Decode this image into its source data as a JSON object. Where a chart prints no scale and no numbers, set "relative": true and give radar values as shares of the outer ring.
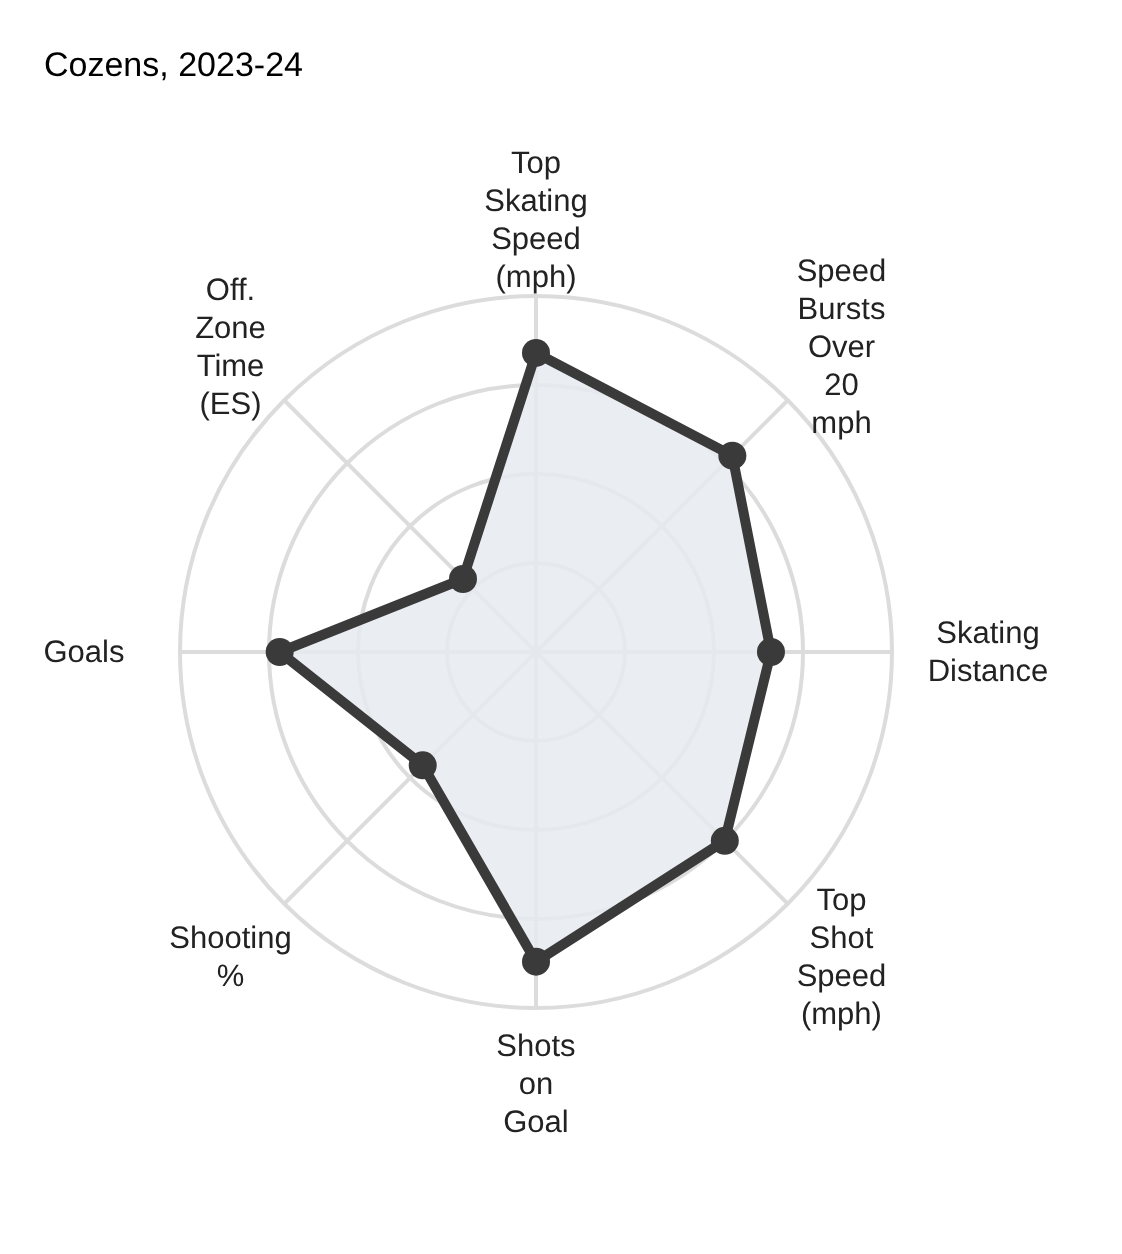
{
  "chart_data": {
    "type": "radar",
    "title": "Cozens, 2023-24",
    "relative": true,
    "grid": true,
    "marker": "circle",
    "categories": [
      "Top Skating Speed (mph)",
      "Speed Bursts Over 20 mph",
      "Skating Distance",
      "Top Shot Speed (mph)",
      "Shots on Goal",
      "Shooting %",
      "Goals",
      "Off. Zone Time (ES)"
    ],
    "series": [
      {
        "color": "#3a3a3a",
        "values": [
          0.84,
          0.78,
          0.66,
          0.75,
          0.87,
          0.45,
          0.72,
          0.29
        ]
      }
    ]
  }
}
